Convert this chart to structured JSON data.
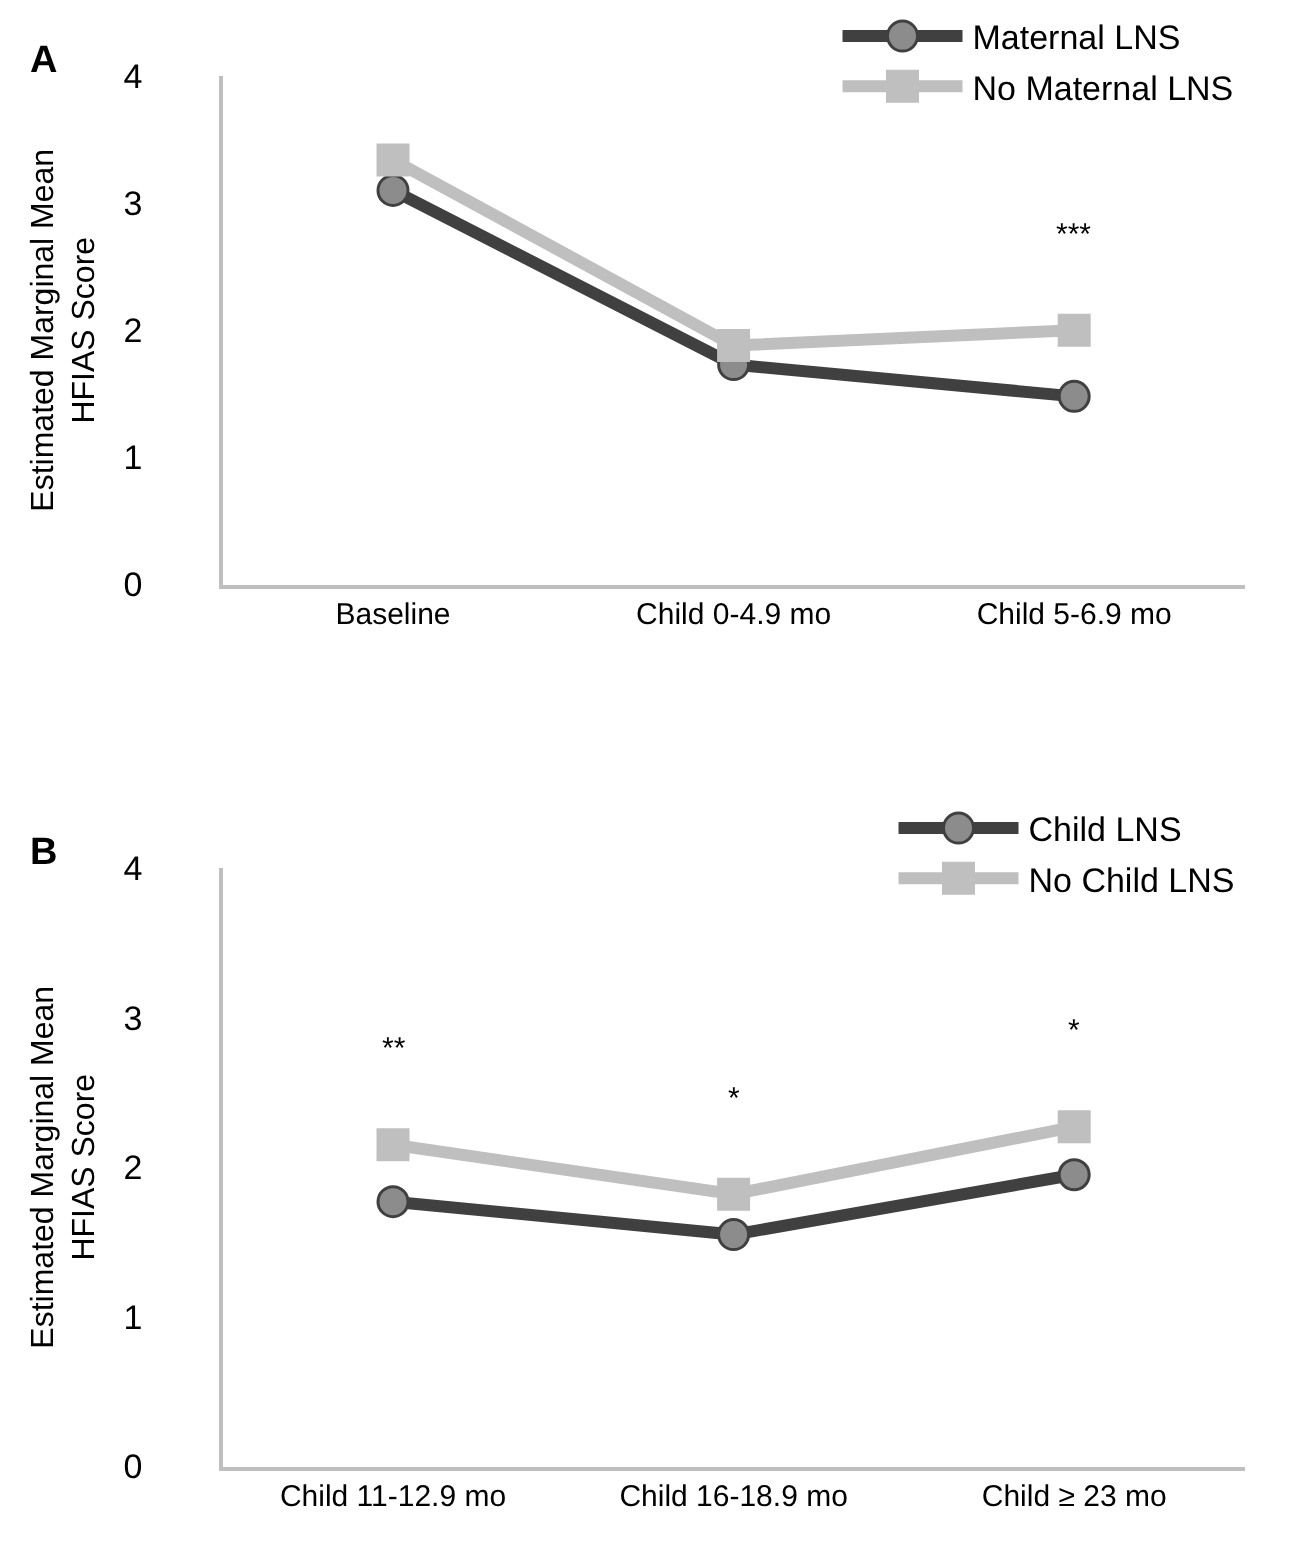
{
  "chart_data": [
    {
      "type": "line",
      "title": "A",
      "ylabel": "Estimated Marginal Mean HFIAS Score",
      "categories": [
        "Baseline",
        "Child 0-4.9 mo",
        "Child 5-6.9 mo"
      ],
      "series": [
        {
          "name": "Maternal LNS",
          "color": "#404040",
          "marker": "circle",
          "values": [
            3.1,
            1.73,
            1.48
          ]
        },
        {
          "name": "No Maternal LNS",
          "color": "#bfbfbf",
          "marker": "square",
          "values": [
            3.34,
            1.88,
            2.0
          ]
        }
      ],
      "ylim": [
        0,
        4
      ],
      "yticks": [
        0,
        1,
        2,
        3,
        4
      ],
      "legend": "top right",
      "line_style": "solid",
      "annotations": [
        "***"
      ]
    },
    {
      "type": "line",
      "title": "B",
      "ylabel": "Estimated Marginal Mean HFIAS Score",
      "categories": [
        "Child 11-12.9 mo",
        "Child 16-18.9 mo",
        "Child ≥ 23 mo"
      ],
      "series": [
        {
          "name": "Child LNS",
          "color": "#404040",
          "marker": "circle",
          "values": [
            1.77,
            1.55,
            1.95
          ]
        },
        {
          "name": "No Child LNS",
          "color": "#bfbfbf",
          "marker": "square",
          "values": [
            2.15,
            1.82,
            2.27
          ]
        }
      ],
      "ylim": [
        0,
        4
      ],
      "yticks": [
        0,
        1,
        2,
        3,
        4
      ],
      "legend": "top right",
      "line_style": "solid",
      "annotations": [
        "**",
        "*",
        "*"
      ]
    }
  ]
}
